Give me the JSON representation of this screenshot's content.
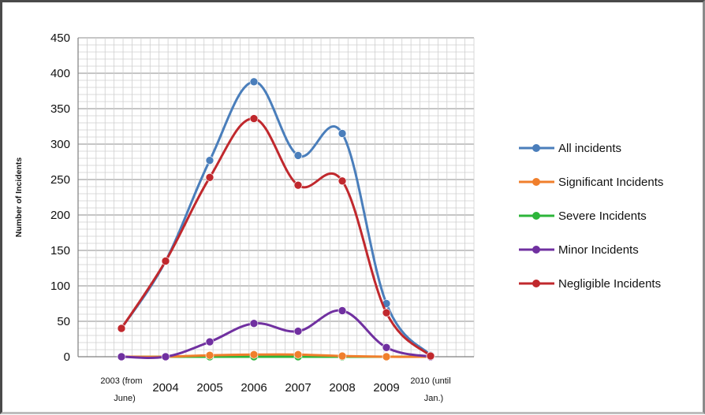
{
  "chart_data": {
    "type": "line",
    "categories": [
      "2003 (from June)",
      "2004",
      "2005",
      "2006",
      "2007",
      "2008",
      "2009",
      "2010 (until Jan.)"
    ],
    "ylabel": "Number of Incidents",
    "xlabel": "",
    "ylim": [
      0,
      450
    ],
    "yticks": [
      0,
      50,
      100,
      150,
      200,
      250,
      300,
      350,
      400,
      450
    ],
    "grid": true,
    "legend_position": "right",
    "series": [
      {
        "name": "All incidents",
        "color": "#4a7ebb",
        "values": [
          40,
          135,
          277,
          388,
          284,
          315,
          75,
          2
        ]
      },
      {
        "name": "Significant Incidents",
        "color": "#f07f2c",
        "values": [
          0,
          0,
          2,
          3,
          3,
          1,
          0,
          0
        ]
      },
      {
        "name": "Severe Incidents",
        "color": "#2db53a",
        "values": [
          0,
          0,
          0,
          0,
          0,
          0,
          0,
          0
        ]
      },
      {
        "name": "Minor Incidents",
        "color": "#7030a0",
        "values": [
          0,
          0,
          21,
          47,
          36,
          65,
          13,
          0
        ]
      },
      {
        "name": "Negligible Incidents",
        "color": "#c0282d",
        "values": [
          40,
          135,
          253,
          336,
          242,
          248,
          62,
          1
        ]
      }
    ]
  }
}
